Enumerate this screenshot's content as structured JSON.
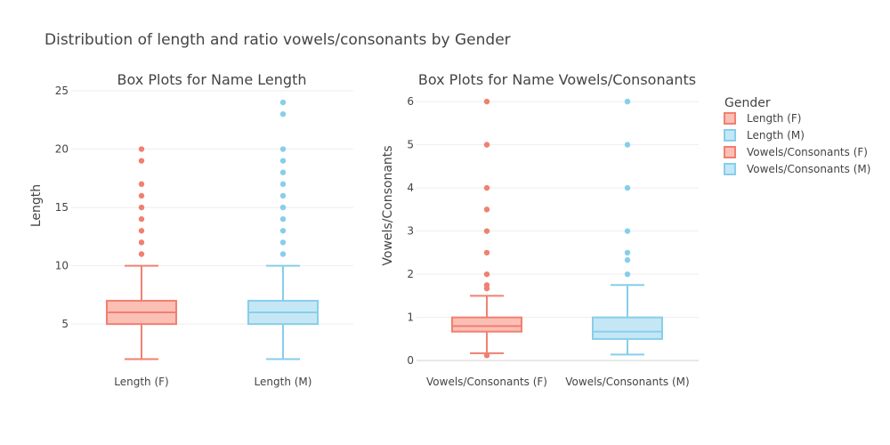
{
  "title": "Distribution of length and ratio vowels/consonants by Gender",
  "legend": {
    "title": "Gender",
    "placement": "right",
    "items": [
      {
        "label": "Length (F)",
        "color": "#f08070"
      },
      {
        "label": "Length (M)",
        "color": "#87ceeb"
      },
      {
        "label": "Vowels/Consonants (F)",
        "color": "#f08070"
      },
      {
        "label": "Vowels/Consonants (M)",
        "color": "#87ceeb"
      }
    ]
  },
  "colors": {
    "female": "#f08070",
    "male": "#87ceeb",
    "female_fill": "#fcbfb6",
    "male_fill": "#c5e7f5",
    "grid": "#eeeeee",
    "text": "#444444"
  },
  "chart_data": [
    {
      "type": "box",
      "title": "Box Plots for Name Length",
      "xlabel": "",
      "ylabel": "Length",
      "ylim": [
        1.5,
        25
      ],
      "yticks": [
        5,
        10,
        15,
        20,
        25
      ],
      "grid": true,
      "categories": [
        "Length (F)",
        "Length (M)"
      ],
      "boxes": [
        {
          "name": "Length (F)",
          "color": "#f08070",
          "fill": "#fcbfb6",
          "min": 2,
          "q1": 5,
          "median": 6,
          "q3": 7,
          "max": 10,
          "outliers": [
            11,
            12,
            13,
            14,
            15,
            16,
            17,
            19,
            20
          ]
        },
        {
          "name": "Length (M)",
          "color": "#87ceeb",
          "fill": "#c5e7f5",
          "min": 2,
          "q1": 5,
          "median": 6,
          "q3": 7,
          "max": 10,
          "outliers": [
            11,
            12,
            13,
            14,
            15,
            16,
            17,
            18,
            19,
            20,
            23,
            24
          ]
        }
      ]
    },
    {
      "type": "box",
      "title": "Box Plots for Name Vowels/Consonants",
      "xlabel": "",
      "ylabel": "Vowels/Consonants",
      "ylim": [
        -0.1,
        6.25
      ],
      "yticks": [
        0,
        1,
        2,
        3,
        4,
        5,
        6
      ],
      "grid": true,
      "categories": [
        "Vowels/Consonants (F)",
        "Vowels/Consonants (M)"
      ],
      "boxes": [
        {
          "name": "Vowels/Consonants (F)",
          "color": "#f08070",
          "fill": "#fcbfb6",
          "min": 0.17,
          "q1": 0.67,
          "median": 0.8,
          "q3": 1.0,
          "max": 1.5,
          "outliers": [
            0.12,
            1.67,
            1.75,
            2.0,
            2.5,
            3.0,
            3.5,
            4.0,
            5.0,
            6.0
          ]
        },
        {
          "name": "Vowels/Consonants (M)",
          "color": "#87ceeb",
          "fill": "#c5e7f5",
          "min": 0.14,
          "q1": 0.5,
          "median": 0.67,
          "q3": 1.0,
          "max": 1.75,
          "outliers": [
            2.0,
            2.33,
            2.5,
            3.0,
            4.0,
            5.0,
            6.0
          ]
        }
      ]
    }
  ]
}
